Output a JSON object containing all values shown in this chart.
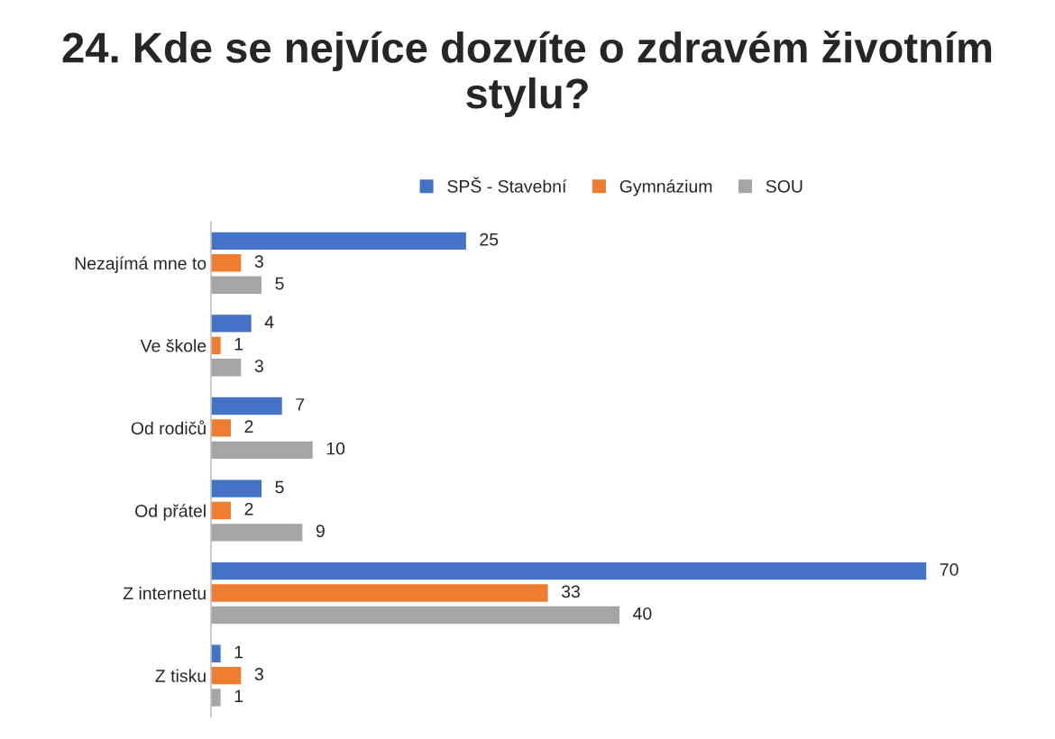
{
  "chart_data": {
    "type": "bar",
    "orientation": "horizontal",
    "title": "24. Kde se nejvíce dozvíte o zdravém životním stylu?",
    "categories": [
      "Nezajímá mne to",
      "Ve škole",
      "Od rodičů",
      "Od přátel",
      "Z internetu",
      "Z tisku"
    ],
    "series": [
      {
        "name": "SPŠ - Stavební",
        "color": "#4472c4",
        "values": [
          25,
          4,
          7,
          5,
          70,
          1
        ]
      },
      {
        "name": "Gymnázium",
        "color": "#ed7d31",
        "values": [
          3,
          1,
          2,
          2,
          33,
          3
        ]
      },
      {
        "name": "SOU",
        "color": "#a5a5a5",
        "values": [
          5,
          3,
          10,
          9,
          40,
          1
        ]
      }
    ],
    "data_labels": true,
    "legend": "top",
    "tick_labels": "y",
    "grid": false
  }
}
